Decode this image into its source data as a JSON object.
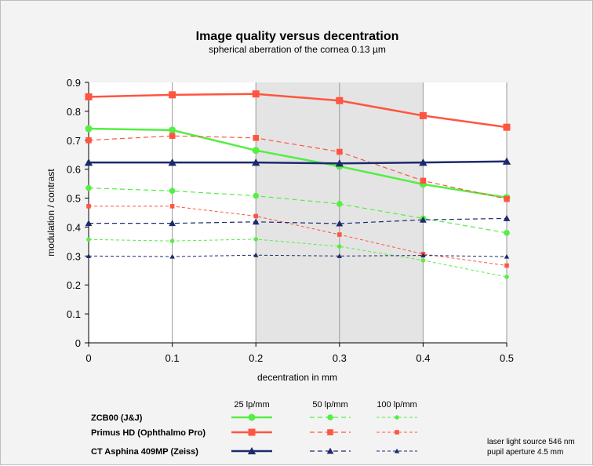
{
  "chart_data": {
    "type": "line",
    "title": "Image quality versus decentration",
    "subtitle": "spherical aberration of the cornea 0.13 µm",
    "xlabel": "decentration in mm",
    "ylabel": "modulation / contrast",
    "xlim": [
      0,
      0.5
    ],
    "ylim": [
      0,
      0.9
    ],
    "x_ticks": [
      "0",
      "0.1",
      "0.2",
      "0.3",
      "0.4",
      "0.5"
    ],
    "y_ticks": [
      "0",
      "0.1",
      "0.2",
      "0.3",
      "0.4",
      "0.5",
      "0.6",
      "0.7",
      "0.8",
      "0.9"
    ],
    "shaded_region": [
      0.2,
      0.4
    ],
    "grid": "vertical",
    "x": [
      0,
      0.1,
      0.2,
      0.3,
      0.4,
      0.5
    ],
    "series": [
      {
        "lens": "ZCB00 (J&J)",
        "frequency": "25 lp/mm",
        "color": "#55ee44",
        "values": [
          0.74,
          0.735,
          0.665,
          0.61,
          0.548,
          0.502
        ]
      },
      {
        "lens": "ZCB00 (J&J)",
        "frequency": "50 lp/mm",
        "color": "#55ee44",
        "values": [
          0.535,
          0.525,
          0.508,
          0.48,
          0.43,
          0.38
        ]
      },
      {
        "lens": "ZCB00 (J&J)",
        "frequency": "100 lp/mm",
        "color": "#55ee44",
        "values": [
          0.357,
          0.352,
          0.358,
          0.333,
          0.285,
          0.228
        ]
      },
      {
        "lens": "Primus HD (Ophthalmo Pro)",
        "frequency": "25 lp/mm",
        "color": "#ff5540",
        "values": [
          0.85,
          0.857,
          0.86,
          0.837,
          0.785,
          0.745
        ]
      },
      {
        "lens": "Primus HD (Ophthalmo Pro)",
        "frequency": "50 lp/mm",
        "color": "#ff5540",
        "values": [
          0.7,
          0.715,
          0.708,
          0.66,
          0.56,
          0.497
        ]
      },
      {
        "lens": "Primus HD (Ophthalmo Pro)",
        "frequency": "100 lp/mm",
        "color": "#ff5540",
        "values": [
          0.472,
          0.472,
          0.438,
          0.374,
          0.307,
          0.267
        ]
      },
      {
        "lens": "CT Asphina 409MP (Zeiss)",
        "frequency": "25 lp/mm",
        "color": "#1c2a6e",
        "values": [
          0.623,
          0.623,
          0.623,
          0.62,
          0.623,
          0.627
        ]
      },
      {
        "lens": "CT Asphina 409MP (Zeiss)",
        "frequency": "50 lp/mm",
        "color": "#1c2a6e",
        "values": [
          0.413,
          0.413,
          0.418,
          0.412,
          0.425,
          0.43
        ]
      },
      {
        "lens": "CT Asphina 409MP (Zeiss)",
        "frequency": "100 lp/mm",
        "color": "#1c2a6e",
        "values": [
          0.3,
          0.298,
          0.303,
          0.3,
          0.302,
          0.298
        ]
      }
    ],
    "legend": {
      "frequencies": [
        "25 lp/mm",
        "50 lp/mm",
        "100 lp/mm"
      ],
      "lenses": [
        {
          "label": "ZCB00 (J&J)",
          "color": "#55ee44",
          "marker": "circle"
        },
        {
          "label": "Primus HD (Ophthalmo Pro)",
          "color": "#ff5540",
          "marker": "square"
        },
        {
          "label": "CT Asphina 409MP (Zeiss)",
          "color": "#1c2a6e",
          "marker": "triangle"
        }
      ],
      "placement": "bottom"
    },
    "notes": [
      "laser light source 546 nm",
      "pupil aperture 4.5 mm"
    ]
  }
}
